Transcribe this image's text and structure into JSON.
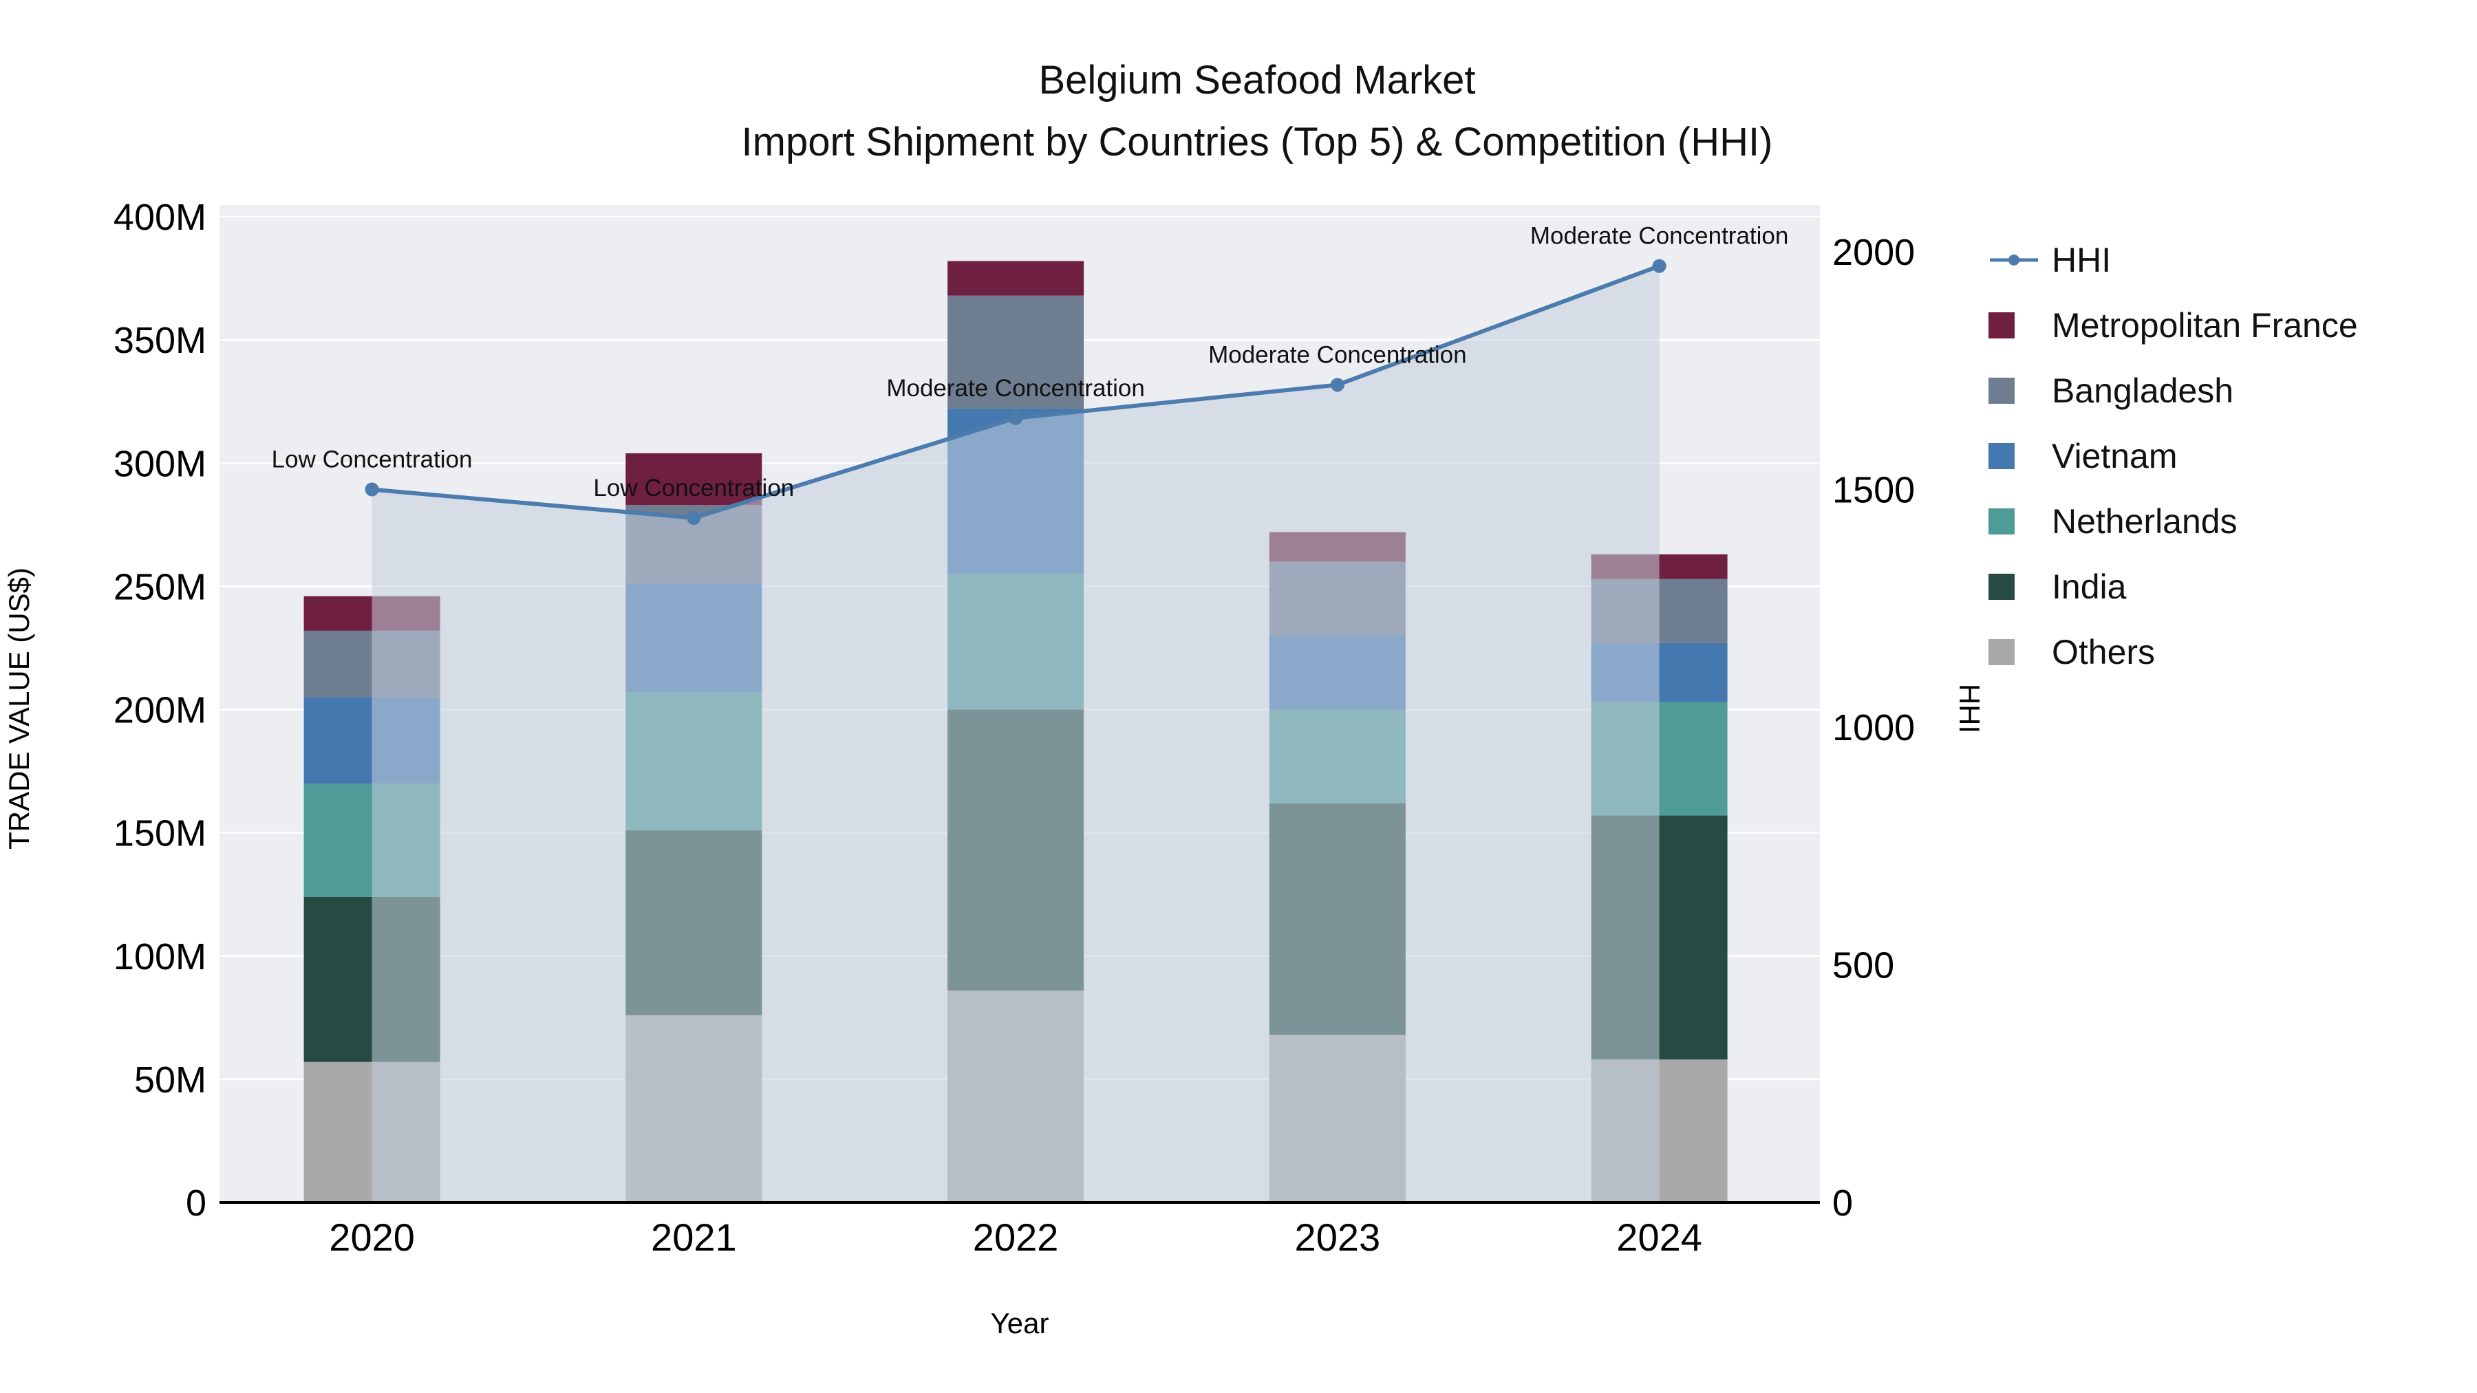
{
  "title": {
    "line1": "Belgium Seafood Market",
    "line2": "Import Shipment by Countries (Top 5) & Competition (HHI)"
  },
  "axes": {
    "y_left": {
      "label": "TRADE VALUE (US$)",
      "ticks": [
        "0",
        "50M",
        "100M",
        "150M",
        "200M",
        "250M",
        "300M",
        "350M",
        "400M"
      ]
    },
    "y_right": {
      "label": "HHI",
      "ticks": [
        "0",
        "500",
        "1000",
        "1500",
        "2000"
      ]
    },
    "x": {
      "label": "Year"
    }
  },
  "chart_data": {
    "type": "bar",
    "subtype": "stacked-bar-with-line-area-overlay",
    "title": "Belgium Seafood Market Import Shipment by Countries (Top 5) & Competition (HHI)",
    "categories": [
      "2020",
      "2021",
      "2022",
      "2023",
      "2024"
    ],
    "ylim_left": [
      0,
      400
    ],
    "ylim_right": [
      0,
      2000
    ],
    "units_left": "Million US$",
    "series": [
      {
        "name": "Others",
        "color": "#a9a9a9",
        "values": [
          57,
          76,
          86,
          68,
          58
        ]
      },
      {
        "name": "India",
        "color": "#254b43",
        "values": [
          67,
          75,
          114,
          94,
          99
        ]
      },
      {
        "name": "Netherlands",
        "color": "#4f9b98",
        "values": [
          46,
          56,
          55,
          38,
          46
        ]
      },
      {
        "name": "Vietnam",
        "color": "#4478af",
        "values": [
          35,
          44,
          67,
          30,
          24
        ]
      },
      {
        "name": "Bangladesh",
        "color": "#6f7d90",
        "values": [
          27,
          32,
          46,
          30,
          26
        ]
      },
      {
        "name": "Metropolitan France",
        "color": "#6f1f3f",
        "values": [
          14,
          21,
          14,
          12,
          10
        ]
      }
    ],
    "line": {
      "name": "HHI",
      "color": "#4b7cad",
      "area_color": "#c5d0df",
      "values": [
        1500,
        1440,
        1650,
        1720,
        1970
      ]
    },
    "annotations": [
      {
        "x": "2020",
        "text": "Low Concentration"
      },
      {
        "x": "2021",
        "text": "Low Concentration"
      },
      {
        "x": "2022",
        "text": "Moderate Concentration"
      },
      {
        "x": "2023",
        "text": "Moderate Concentration"
      },
      {
        "x": "2024",
        "text": "Moderate Concentration"
      }
    ],
    "legend_position": "right",
    "grid": true
  },
  "legend": {
    "items": [
      {
        "label": "HHI",
        "color": "#4b7cad",
        "type": "line"
      },
      {
        "label": "Metropolitan France",
        "color": "#6f1f3f",
        "type": "swatch"
      },
      {
        "label": "Bangladesh",
        "color": "#6f7d90",
        "type": "swatch"
      },
      {
        "label": "Vietnam",
        "color": "#4478af",
        "type": "swatch"
      },
      {
        "label": "Netherlands",
        "color": "#4f9b98",
        "type": "swatch"
      },
      {
        "label": "India",
        "color": "#254b43",
        "type": "swatch"
      },
      {
        "label": "Others",
        "color": "#a9a9a9",
        "type": "swatch"
      }
    ]
  }
}
